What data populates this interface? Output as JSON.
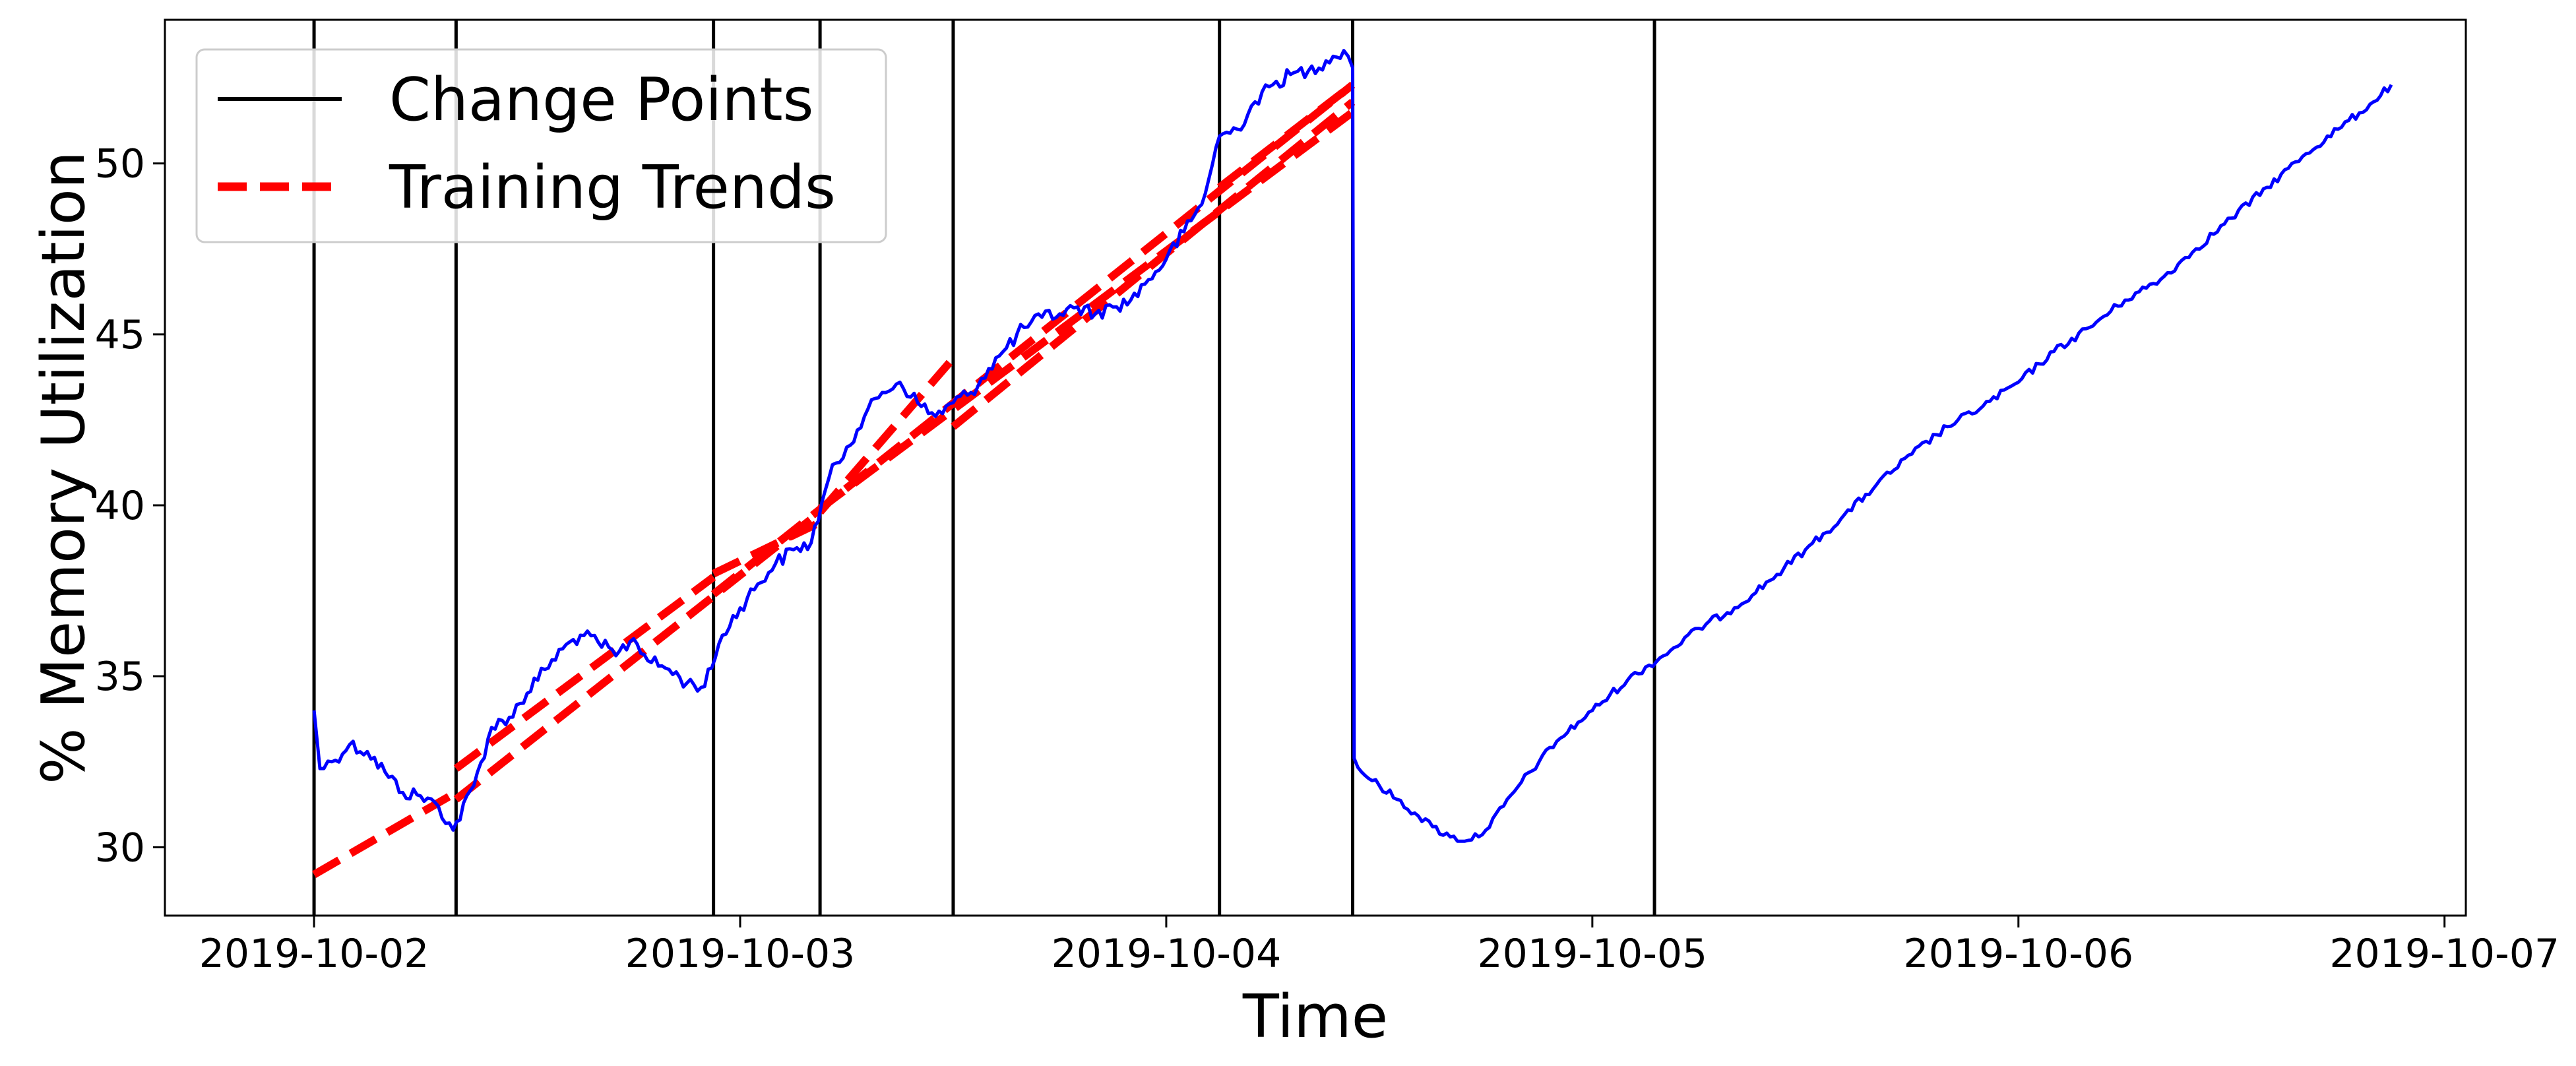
{
  "chart_data": {
    "type": "line",
    "xlabel": "Time",
    "ylabel": "% Memory Utilization",
    "x_ticks": [
      "2019-10-02",
      "2019-10-03",
      "2019-10-04",
      "2019-10-05",
      "2019-10-06",
      "2019-10-07"
    ],
    "y_ticks": [
      30,
      35,
      40,
      45,
      50
    ],
    "xlim": [
      "2019-10-01T15:36",
      "2019-10-07T01:12"
    ],
    "ylim": [
      28,
      54.2
    ],
    "grid": false,
    "legend_position": "top-left",
    "legend": [
      {
        "label": "Change Points",
        "style": "solid",
        "color": "#000000"
      },
      {
        "label": "Training Trends",
        "style": "dashed",
        "color": "#ff0000"
      }
    ],
    "change_points": [
      "2019-10-02T00:00",
      "2019-10-02T08:00",
      "2019-10-02T22:30",
      "2019-10-03T04:30",
      "2019-10-03T12:00",
      "2019-10-04T03:00",
      "2019-10-04T10:30",
      "2019-10-05T03:30"
    ],
    "training_trends": [
      {
        "x": [
          "2019-10-02T00:00",
          "2019-10-02T08:00"
        ],
        "y": [
          29.2,
          31.6
        ]
      },
      {
        "x": [
          "2019-10-02T08:00",
          "2019-10-02T22:30"
        ],
        "y": [
          32.3,
          37.9
        ]
      },
      {
        "x": [
          "2019-10-02T08:00",
          "2019-10-03T04:30"
        ],
        "y": [
          31.4,
          39.8
        ]
      },
      {
        "x": [
          "2019-10-02T22:30",
          "2019-10-03T04:30"
        ],
        "y": [
          38.0,
          39.5
        ]
      },
      {
        "x": [
          "2019-10-03T04:30",
          "2019-10-03T12:00"
        ],
        "y": [
          39.8,
          44.3
        ]
      },
      {
        "x": [
          "2019-10-02T22:30",
          "2019-10-04T10:30"
        ],
        "y": [
          37.4,
          52.3
        ]
      },
      {
        "x": [
          "2019-10-03T04:30",
          "2019-10-04T10:30"
        ],
        "y": [
          39.9,
          51.5
        ]
      },
      {
        "x": [
          "2019-10-03T12:00",
          "2019-10-04T10:30"
        ],
        "y": [
          42.3,
          51.8
        ]
      },
      {
        "x": [
          "2019-10-04T03:00",
          "2019-10-04T10:30"
        ],
        "y": [
          49.3,
          52.3
        ]
      }
    ],
    "series": [
      {
        "color": "#0000ff",
        "x": [
          "2019-10-02T00:00",
          "2019-10-02T00:20",
          "2019-10-02T01:00",
          "2019-10-02T02:00",
          "2019-10-02T03:00",
          "2019-10-02T04:00",
          "2019-10-02T05:00",
          "2019-10-02T06:00",
          "2019-10-02T07:00",
          "2019-10-02T07:50",
          "2019-10-02T09:00",
          "2019-10-02T10:00",
          "2019-10-02T11:00",
          "2019-10-02T12:00",
          "2019-10-02T13:00",
          "2019-10-02T14:00",
          "2019-10-02T15:00",
          "2019-10-02T16:00",
          "2019-10-02T17:00",
          "2019-10-02T18:00",
          "2019-10-02T19:00",
          "2019-10-02T20:00",
          "2019-10-02T21:00",
          "2019-10-02T22:00",
          "2019-10-02T23:00",
          "2019-10-03T00:00",
          "2019-10-03T01:00",
          "2019-10-03T02:00",
          "2019-10-03T03:00",
          "2019-10-03T04:00",
          "2019-10-03T05:00",
          "2019-10-03T06:00",
          "2019-10-03T07:00",
          "2019-10-03T08:00",
          "2019-10-03T09:00",
          "2019-10-03T10:00",
          "2019-10-03T11:00",
          "2019-10-03T12:00",
          "2019-10-03T13:00",
          "2019-10-03T14:00",
          "2019-10-03T15:00",
          "2019-10-03T16:00",
          "2019-10-03T17:00",
          "2019-10-03T18:00",
          "2019-10-03T19:00",
          "2019-10-03T20:00",
          "2019-10-03T21:00",
          "2019-10-03T22:00",
          "2019-10-03T23:00",
          "2019-10-04T00:00",
          "2019-10-04T01:00",
          "2019-10-04T02:00",
          "2019-10-04T03:00",
          "2019-10-04T04:00",
          "2019-10-04T05:00",
          "2019-10-04T06:00",
          "2019-10-04T07:00",
          "2019-10-04T08:00",
          "2019-10-04T09:00",
          "2019-10-04T10:00",
          "2019-10-04T10:30",
          "2019-10-04T10:35",
          "2019-10-04T11:00",
          "2019-10-04T12:00",
          "2019-10-04T13:00",
          "2019-10-04T14:00",
          "2019-10-04T15:00",
          "2019-10-04T16:00",
          "2019-10-04T17:00",
          "2019-10-04T18:00",
          "2019-10-04T19:00",
          "2019-10-04T20:00",
          "2019-10-04T21:00",
          "2019-10-04T22:00",
          "2019-10-05T00:00",
          "2019-10-05T02:00",
          "2019-10-05T04:00",
          "2019-10-05T06:00",
          "2019-10-05T08:00",
          "2019-10-05T10:00",
          "2019-10-05T12:00",
          "2019-10-05T14:00",
          "2019-10-05T16:00",
          "2019-10-05T18:00",
          "2019-10-05T20:00",
          "2019-10-05T22:00",
          "2019-10-06T00:00",
          "2019-10-06T02:00",
          "2019-10-06T04:00",
          "2019-10-06T06:00",
          "2019-10-06T08:00",
          "2019-10-06T10:00",
          "2019-10-06T12:00",
          "2019-10-06T14:00",
          "2019-10-06T16:00",
          "2019-10-06T18:00",
          "2019-10-06T20:00",
          "2019-10-06T21:00"
        ],
        "y": [
          34.0,
          32.3,
          32.5,
          33.0,
          32.8,
          32.2,
          31.6,
          31.5,
          31.2,
          30.5,
          31.8,
          33.5,
          33.8,
          34.5,
          35.2,
          35.8,
          36.2,
          36.0,
          35.6,
          36.1,
          35.4,
          35.2,
          34.8,
          34.7,
          36.2,
          37.0,
          37.7,
          38.3,
          38.7,
          38.9,
          40.8,
          41.7,
          42.6,
          43.3,
          43.6,
          43.0,
          42.6,
          43.0,
          43.3,
          44.0,
          44.6,
          45.2,
          45.5,
          45.6,
          45.8,
          45.6,
          45.8,
          46.0,
          46.6,
          47.2,
          48.0,
          48.8,
          50.8,
          51.0,
          51.8,
          52.3,
          52.6,
          52.7,
          53.0,
          53.3,
          52.8,
          32.6,
          32.2,
          31.8,
          31.4,
          31.0,
          30.6,
          30.3,
          30.2,
          30.5,
          31.2,
          31.9,
          32.5,
          33.1,
          34.0,
          34.9,
          35.6,
          36.4,
          37.0,
          37.8,
          38.7,
          39.6,
          40.6,
          41.5,
          42.3,
          42.9,
          43.6,
          44.5,
          45.2,
          46.0,
          46.6,
          47.5,
          48.4,
          49.3,
          50.2,
          51.0,
          51.8,
          52.3
        ]
      }
    ]
  }
}
